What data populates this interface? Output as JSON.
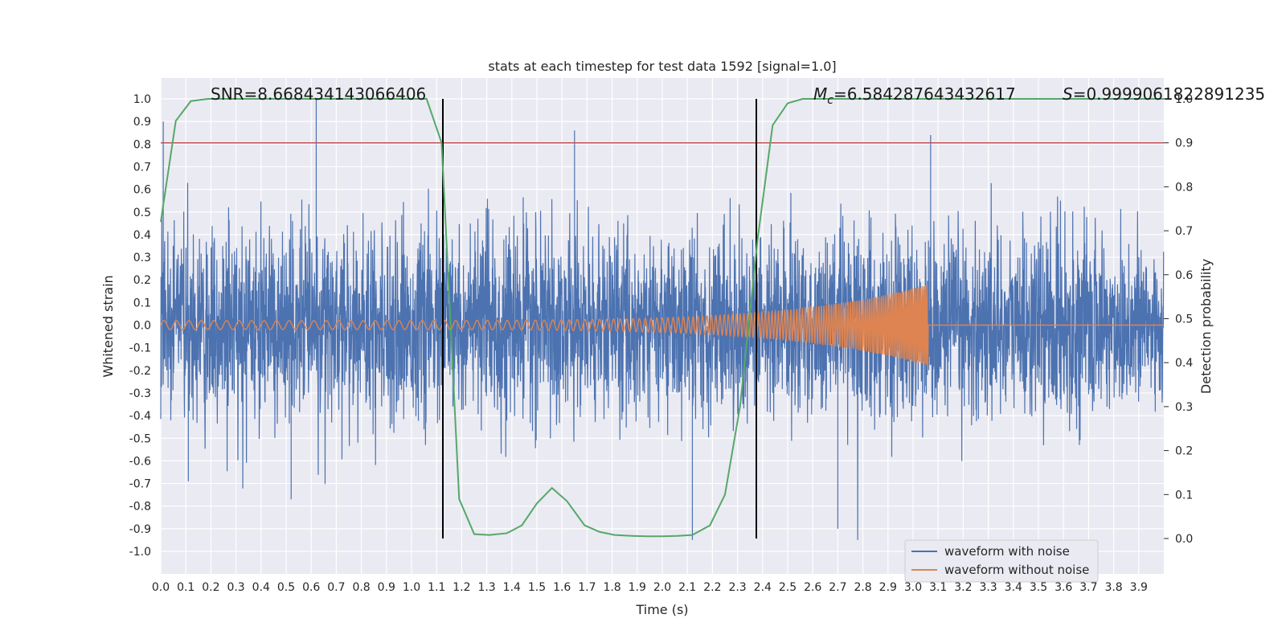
{
  "chart_data": {
    "type": "line",
    "title": "stats at each timestep for test data 1592 [signal=1.0]",
    "xlabel": "Time (s)",
    "ylabel": "Whitened strain",
    "ylabel_right": "Detection probability",
    "xlim": [
      0.0,
      4.0
    ],
    "ylim": [
      -1.05,
      1.1
    ],
    "ylim_right": [
      -0.05,
      1.05
    ],
    "grid": true,
    "x_ticks": [
      "0.0",
      "0.1",
      "0.2",
      "0.3",
      "0.4",
      "0.5",
      "0.6",
      "0.7",
      "0.8",
      "0.9",
      "1.0",
      "1.1",
      "1.2",
      "1.3",
      "1.4",
      "1.5",
      "1.6",
      "1.7",
      "1.8",
      "1.9",
      "2.0",
      "2.1",
      "2.2",
      "2.3",
      "2.4",
      "2.5",
      "2.6",
      "2.7",
      "2.8",
      "2.9",
      "3.0",
      "3.1",
      "3.2",
      "3.3",
      "3.4",
      "3.5",
      "3.6",
      "3.7",
      "3.8",
      "3.9"
    ],
    "y_ticks": [
      "1.0",
      "0.9",
      "0.8",
      "0.7",
      "0.6",
      "0.5",
      "0.4",
      "0.3",
      "0.2",
      "0.1",
      "0.0",
      "-0.1",
      "-0.2",
      "-0.3",
      "-0.4",
      "-0.5",
      "-0.6",
      "-0.7",
      "-0.8",
      "-0.9",
      "-1.0"
    ],
    "y_ticks_right": [
      "1.0",
      "0.9",
      "0.8",
      "0.7",
      "0.6",
      "0.5",
      "0.4",
      "0.3",
      "0.2",
      "0.1",
      "0.0"
    ],
    "annotations": {
      "snr": "SNR=8.668434143066406",
      "mc_symbol": "M",
      "mc_sub": "c",
      "mc_value": "=6.584287643432617",
      "s_symbol": "S",
      "s_value": "=0.9999061822891235"
    },
    "threshold_right": 0.9,
    "vlines_x": [
      1.125,
      2.375
    ],
    "series": [
      {
        "name": "waveform with noise",
        "color": "#4c72b0",
        "description_points": {
          "noise_sd": 0.2,
          "spikes": [
            [
              0.01,
              0.9
            ],
            [
              0.62,
              1.0
            ],
            [
              1.65,
              0.86
            ],
            [
              3.07,
              0.84
            ],
            [
              0.52,
              -0.77
            ],
            [
              2.12,
              -0.95
            ],
            [
              2.7,
              -0.9
            ],
            [
              0.11,
              -0.69
            ]
          ]
        }
      },
      {
        "name": "waveform without noise",
        "color": "#dd8452",
        "chirp": {
          "start_x": 0.0,
          "end_x": 3.06,
          "start_freq_hz": 20,
          "end_freq_hz": 160,
          "start_amp": 0.02,
          "end_amp": 0.18
        }
      },
      {
        "name": "Detection probability",
        "color": "#55a868",
        "axis": "right",
        "x": [
          0.0,
          0.06,
          0.12,
          0.19,
          0.25,
          0.31,
          0.38,
          0.44,
          0.5,
          0.56,
          0.62,
          0.69,
          0.75,
          0.81,
          0.88,
          0.94,
          1.0,
          1.06,
          1.12,
          1.19,
          1.25,
          1.31,
          1.38,
          1.44,
          1.5,
          1.56,
          1.62,
          1.69,
          1.75,
          1.81,
          1.88,
          1.94,
          2.0,
          2.06,
          2.12,
          2.19,
          2.25,
          2.31,
          2.38,
          2.44,
          2.5,
          2.56,
          2.62,
          2.69,
          2.75,
          2.81,
          2.88,
          2.94,
          3.0,
          3.06,
          3.12,
          3.19,
          3.25,
          3.31,
          3.38,
          3.44,
          3.5,
          3.56,
          3.62,
          3.69,
          3.75,
          3.81,
          3.88,
          3.94,
          4.0
        ],
        "y": [
          0.72,
          0.95,
          0.995,
          1.0,
          1.0,
          1.0,
          1.0,
          1.0,
          1.0,
          1.0,
          1.0,
          1.0,
          1.0,
          1.0,
          1.0,
          1.0,
          1.0,
          1.0,
          0.9,
          0.09,
          0.01,
          0.008,
          0.012,
          0.03,
          0.08,
          0.115,
          0.085,
          0.03,
          0.015,
          0.008,
          0.006,
          0.005,
          0.005,
          0.006,
          0.008,
          0.03,
          0.1,
          0.3,
          0.68,
          0.94,
          0.99,
          1.0,
          1.0,
          1.0,
          1.0,
          1.0,
          1.0,
          1.0,
          1.0,
          1.0,
          1.0,
          1.0,
          1.0,
          1.0,
          1.0,
          1.0,
          1.0,
          1.0,
          1.0,
          1.0,
          1.0,
          1.0,
          1.0,
          1.0,
          1.0
        ]
      }
    ],
    "legend": {
      "placement": "bottom-right",
      "entries": [
        "waveform with noise",
        "waveform without noise"
      ]
    }
  }
}
